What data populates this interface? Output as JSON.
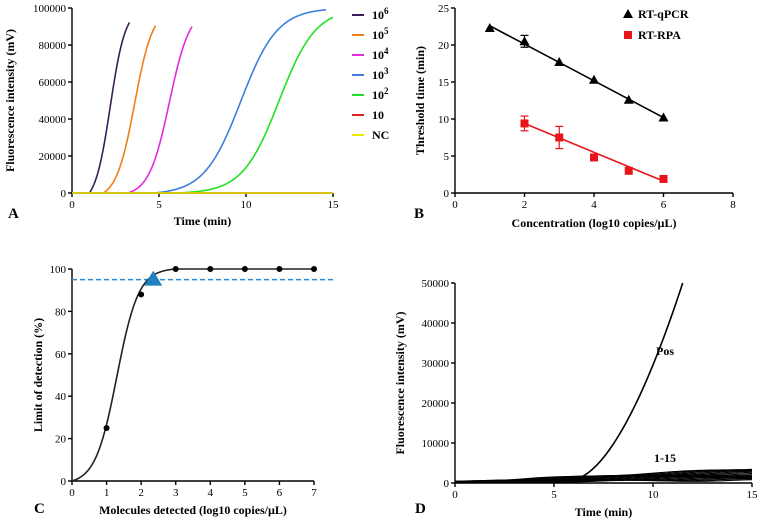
{
  "chart_data": [
    {
      "panel": "A",
      "type": "line",
      "xlabel": "Time (min)",
      "ylabel": "Fluorescence intensity (mV)",
      "xlim": [
        0,
        15
      ],
      "ylim": [
        0,
        100000
      ],
      "xticks": [
        "0",
        "5",
        "10",
        "15"
      ],
      "yticks": [
        "0",
        "20000",
        "40000",
        "60000",
        "80000",
        "100000"
      ],
      "legend_position": "right",
      "series": [
        {
          "name": "10",
          "sup": "6",
          "color": "#3b1d5c",
          "onset": 1.0,
          "half": 2.2,
          "k": 2.3,
          "cap": 3.3
        },
        {
          "name": "10",
          "sup": "5",
          "color": "#f07f1a",
          "onset": 1.8,
          "half": 3.6,
          "k": 1.9,
          "cap": 4.8
        },
        {
          "name": "10",
          "sup": "4",
          "color": "#e02ce0",
          "onset": 3.2,
          "half": 5.6,
          "k": 1.7,
          "cap": 6.9
        },
        {
          "name": "10",
          "sup": "3",
          "color": "#3d7fdc",
          "onset": 4.7,
          "half": 9.7,
          "k": 0.95,
          "cap": 14.6
        },
        {
          "name": "10",
          "sup": "2",
          "color": "#22e022",
          "onset": 6.0,
          "half": 11.9,
          "k": 0.95,
          "cap": 15.0
        },
        {
          "name": "10",
          "sup": "",
          "color": "#e02020",
          "flat": 0
        },
        {
          "name": "NC",
          "sup": "",
          "color": "#e8e800",
          "flat": 0
        }
      ]
    },
    {
      "panel": "B",
      "type": "scatter",
      "xlabel": "Concentration (log10 copies/µL)",
      "ylabel": "Threshold time (min)",
      "xlim": [
        0,
        8
      ],
      "ylim": [
        0,
        25
      ],
      "xticks": [
        "0",
        "2",
        "4",
        "6",
        "8"
      ],
      "yticks": [
        "0",
        "5",
        "10",
        "15",
        "20",
        "25"
      ],
      "legend_position": "top-right",
      "series": [
        {
          "name": "RT-qPCR",
          "marker": "triangle",
          "color": "#000000",
          "x": [
            1,
            2,
            3,
            4,
            5,
            6
          ],
          "y": [
            22.3,
            20.5,
            17.7,
            15.3,
            12.6,
            10.2
          ],
          "err": [
            0,
            0.8,
            0,
            0,
            0,
            0
          ],
          "fit": [
            [
              1,
              22.6
            ],
            [
              6,
              10.2
            ]
          ]
        },
        {
          "name": "RT-RPA",
          "marker": "square",
          "color": "#e8161b",
          "x": [
            2,
            3,
            4,
            5,
            6
          ],
          "y": [
            9.4,
            7.5,
            4.8,
            3.0,
            1.9
          ],
          "err": [
            1.0,
            1.5,
            0,
            0,
            0
          ],
          "fit": [
            [
              2,
              9.4
            ],
            [
              6,
              1.6
            ]
          ]
        }
      ]
    },
    {
      "panel": "C",
      "type": "line",
      "xlabel": "Molecules detected (log10 copies/µL)",
      "ylabel": "Limit of detection (%)",
      "xlim": [
        0,
        7
      ],
      "ylim": [
        0,
        100
      ],
      "xticks": [
        "0",
        "1",
        "2",
        "3",
        "4",
        "5",
        "6",
        "7"
      ],
      "yticks": [
        "0",
        "20",
        "40",
        "60",
        "80",
        "100"
      ],
      "points": {
        "x": [
          1,
          2,
          3,
          4,
          5,
          6,
          7
        ],
        "y": [
          25,
          88,
          100,
          100,
          100,
          100,
          100
        ]
      },
      "threshold": 95,
      "threshold_color": "#2a8fd6",
      "lod_marker": {
        "x": 2.35,
        "y": 95,
        "color": "#1f7fc0"
      }
    },
    {
      "panel": "D",
      "type": "line",
      "xlabel": "Time (min)",
      "ylabel": "Fluorescence intensity (mV)",
      "xlim": [
        0,
        15
      ],
      "ylim": [
        0,
        50000
      ],
      "xticks": [
        "0",
        "5",
        "10",
        "15"
      ],
      "yticks": [
        "0",
        "10000",
        "20000",
        "30000",
        "40000",
        "50000"
      ],
      "annotations": [
        "Pos",
        "1-15"
      ],
      "pos_curve": {
        "onset": 6.0,
        "end": 11.5,
        "max": 50000
      },
      "background_count": 15
    }
  ]
}
